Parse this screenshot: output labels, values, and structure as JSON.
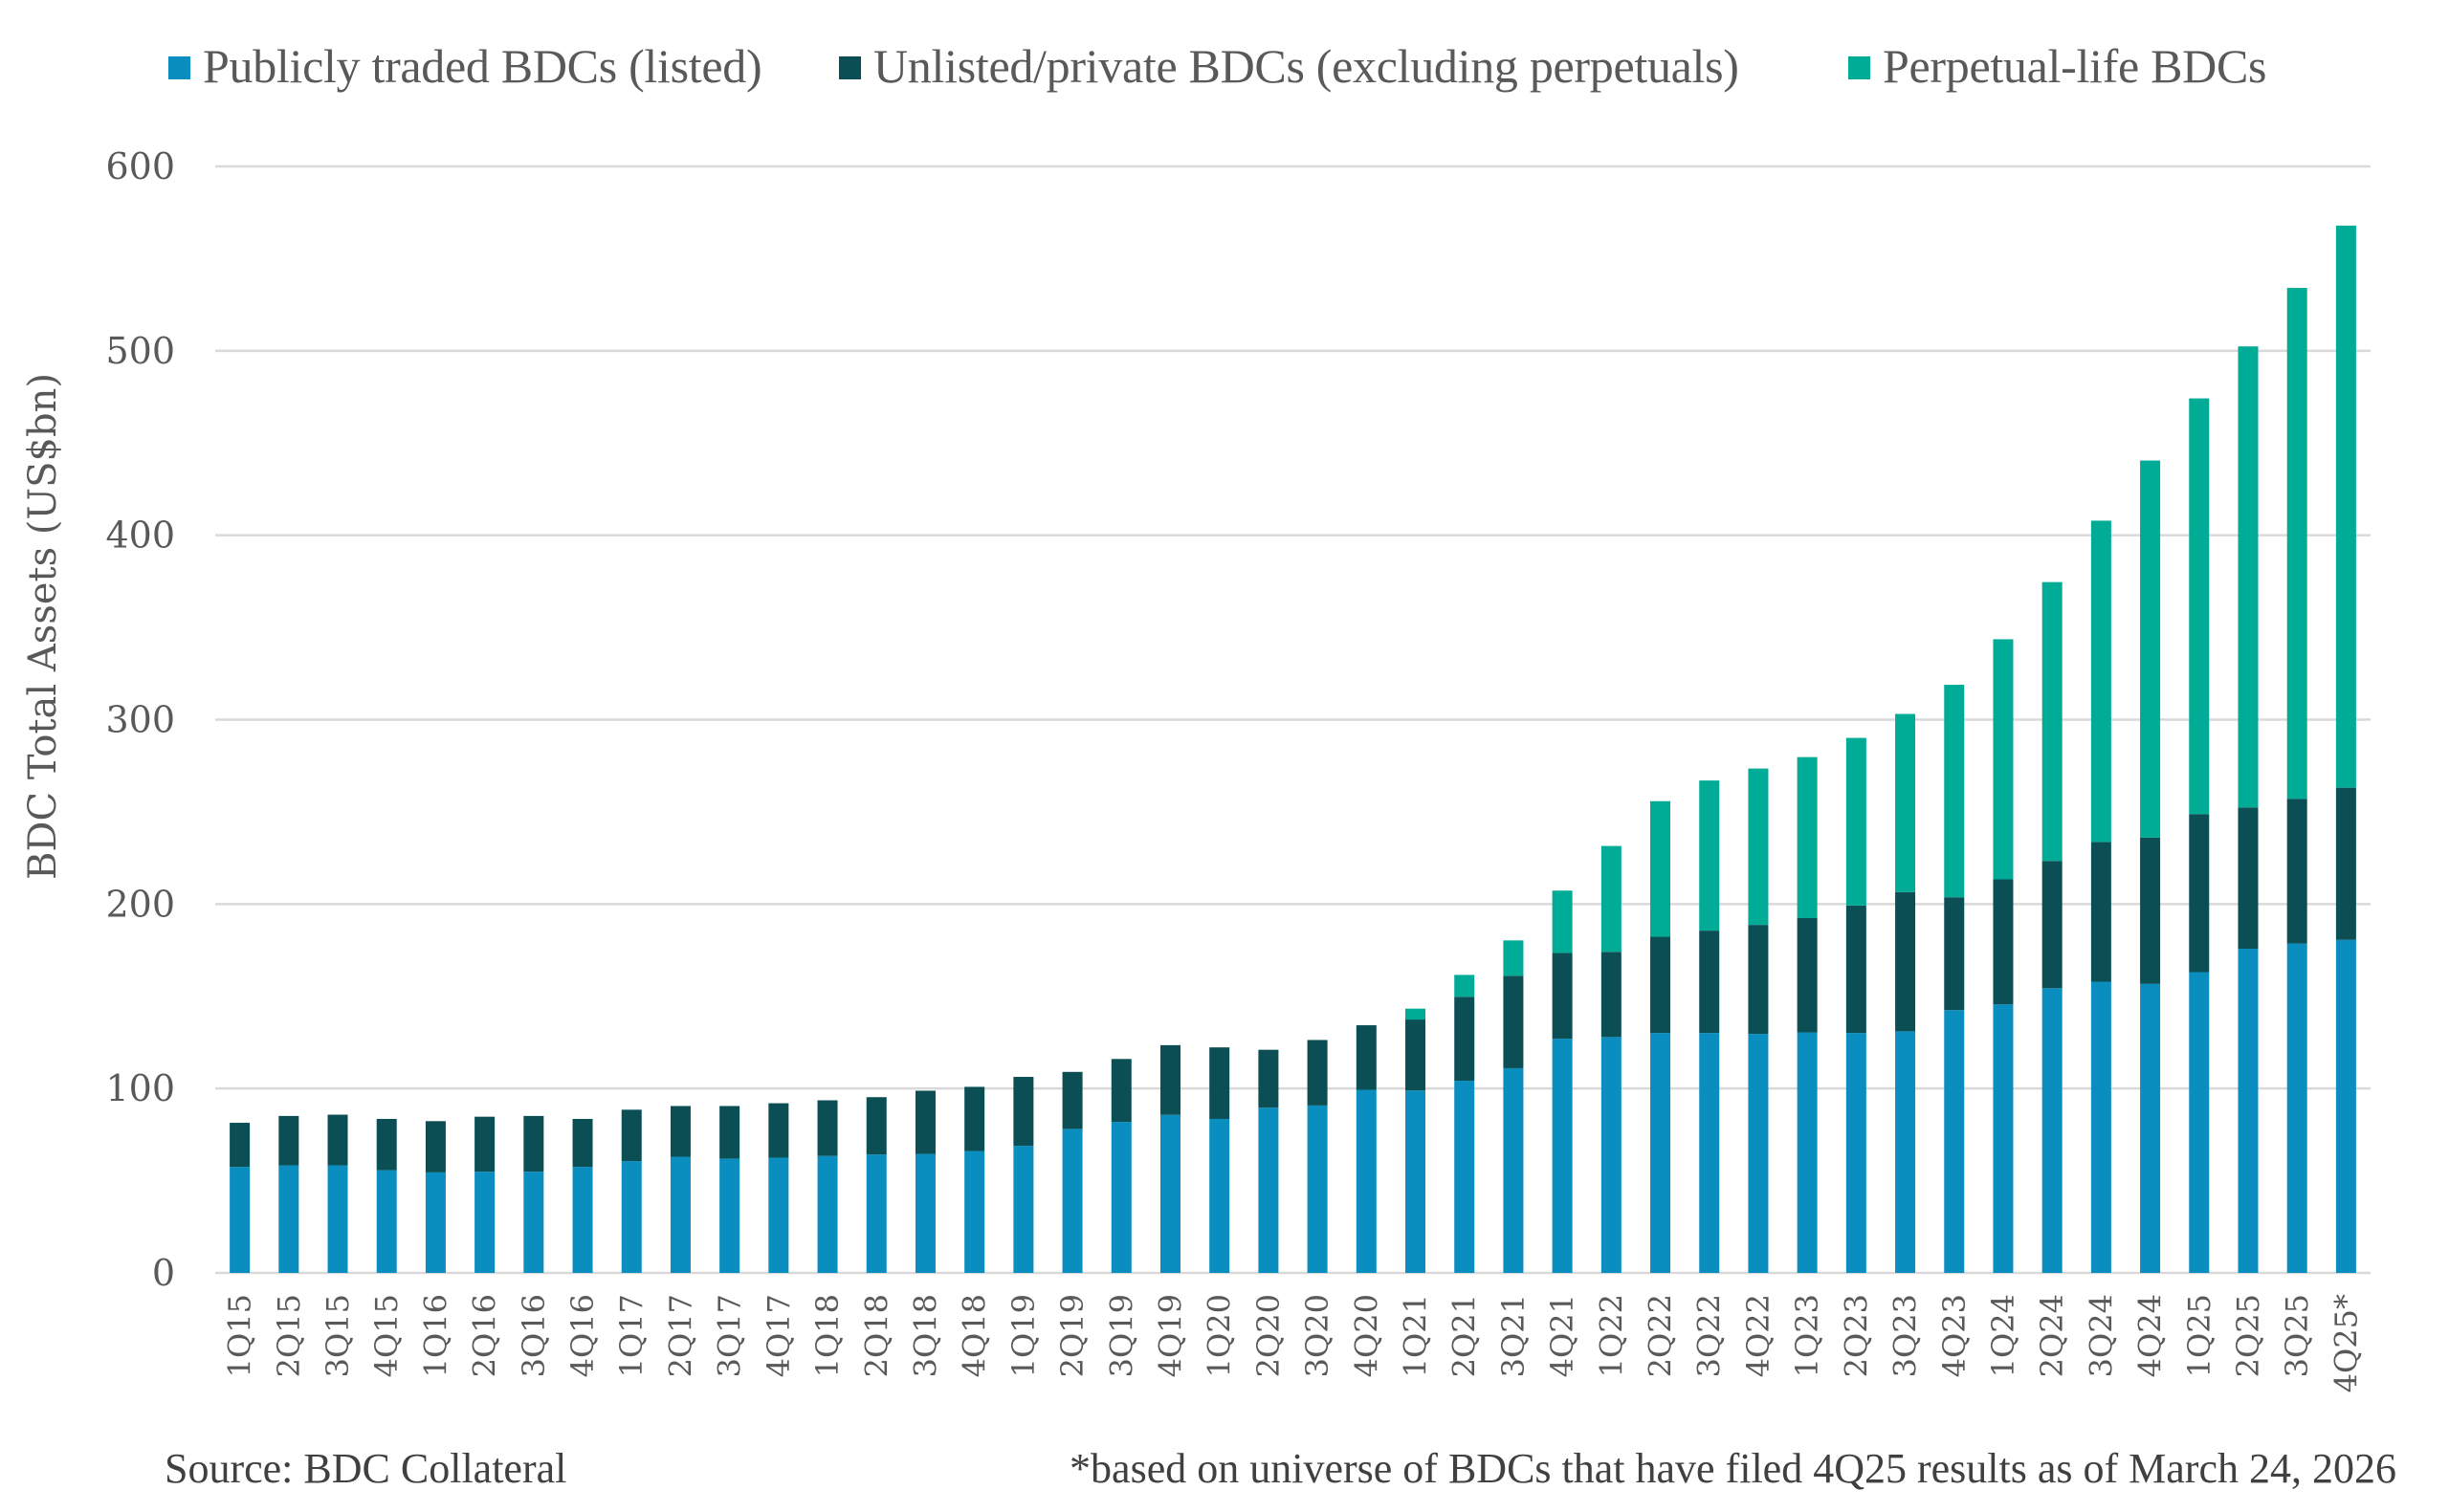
{
  "chart_data": {
    "type": "bar",
    "stacked": true,
    "title": "",
    "xlabel": "",
    "ylabel": "BDC Total Assets (US$bn)",
    "ylim": [
      0,
      600
    ],
    "yticks": [
      0,
      100,
      200,
      300,
      400,
      500,
      600
    ],
    "grid": true,
    "legend_position": "top",
    "categories": [
      "1Q15",
      "2Q15",
      "3Q15",
      "4Q15",
      "1Q16",
      "2Q16",
      "3Q16",
      "4Q16",
      "1Q17",
      "2Q17",
      "3Q17",
      "4Q17",
      "1Q18",
      "2Q18",
      "3Q18",
      "4Q18",
      "1Q19",
      "2Q19",
      "3Q19",
      "4Q19",
      "1Q20",
      "2Q20",
      "3Q20",
      "4Q20",
      "1Q21",
      "2Q21",
      "3Q21",
      "4Q21",
      "1Q22",
      "2Q22",
      "3Q22",
      "4Q22",
      "1Q23",
      "2Q23",
      "3Q23",
      "4Q23",
      "1Q24",
      "2Q24",
      "3Q24",
      "4Q24",
      "1Q25",
      "2Q25",
      "3Q25",
      "4Q25*"
    ],
    "series": [
      {
        "name": "Publicly traded BDCs (listed)",
        "color": "#0A8EC0",
        "values": [
          57.5,
          58.3,
          58.3,
          55.7,
          54.5,
          54.9,
          54.9,
          57.5,
          60.6,
          63.0,
          62.0,
          62.5,
          63.4,
          64.2,
          64.5,
          66.1,
          68.9,
          78.1,
          81.9,
          85.7,
          83.5,
          89.6,
          90.8,
          99.3,
          98.9,
          104.2,
          111.0,
          127.0,
          127.9,
          130.1,
          130.1,
          129.6,
          130.4,
          130.1,
          131.0,
          142.5,
          145.6,
          154.4,
          157.9,
          156.7,
          163.1,
          175.8,
          178.6,
          180.6
        ]
      },
      {
        "name": "Unlisted/private BDCs (excluding perpetuals)",
        "color": "#0B4F55",
        "values": [
          23.9,
          26.8,
          27.5,
          27.8,
          27.8,
          29.8,
          30.2,
          26.0,
          27.9,
          27.5,
          28.5,
          29.5,
          30.2,
          31.1,
          34.3,
          34.8,
          37.4,
          30.9,
          34.1,
          37.8,
          38.8,
          31.4,
          35.5,
          35.0,
          38.5,
          45.5,
          50.1,
          46.5,
          46.2,
          52.2,
          55.5,
          59.1,
          62.0,
          69.1,
          75.5,
          61.2,
          67.8,
          69.0,
          75.8,
          79.4,
          85.7,
          76.6,
          78.5,
          82.5
        ]
      },
      {
        "name": "Perpetual-life BDCs",
        "color": "#00AC95",
        "values": [
          0,
          0,
          0,
          0,
          0,
          0,
          0,
          0,
          0,
          0,
          0,
          0,
          0,
          0,
          0,
          0,
          0,
          0,
          0,
          0,
          0,
          0,
          0,
          0,
          5.9,
          11.9,
          19.2,
          33.8,
          57.4,
          73.5,
          81.4,
          84.8,
          87.3,
          90.9,
          96.6,
          115.2,
          130.2,
          151.2,
          174.2,
          204.4,
          225.4,
          250.0,
          277.0,
          304.8
        ]
      }
    ]
  },
  "legend": [
    {
      "label": "Publicly traded BDCs (listed)",
      "color": "#0A8EC0"
    },
    {
      "label": "Unlisted/private BDCs (excluding perpetuals)",
      "color": "#0B4F55"
    },
    {
      "label": "Perpetual-life BDCs",
      "color": "#00AC95"
    }
  ],
  "footer": {
    "source": "Source: BDC Collateral",
    "note": "*based on universe of BDCs that have filed 4Q25 results as of March 24, 2026"
  },
  "colors": {
    "gridline": "#D9D9D9",
    "text": "#595959"
  }
}
